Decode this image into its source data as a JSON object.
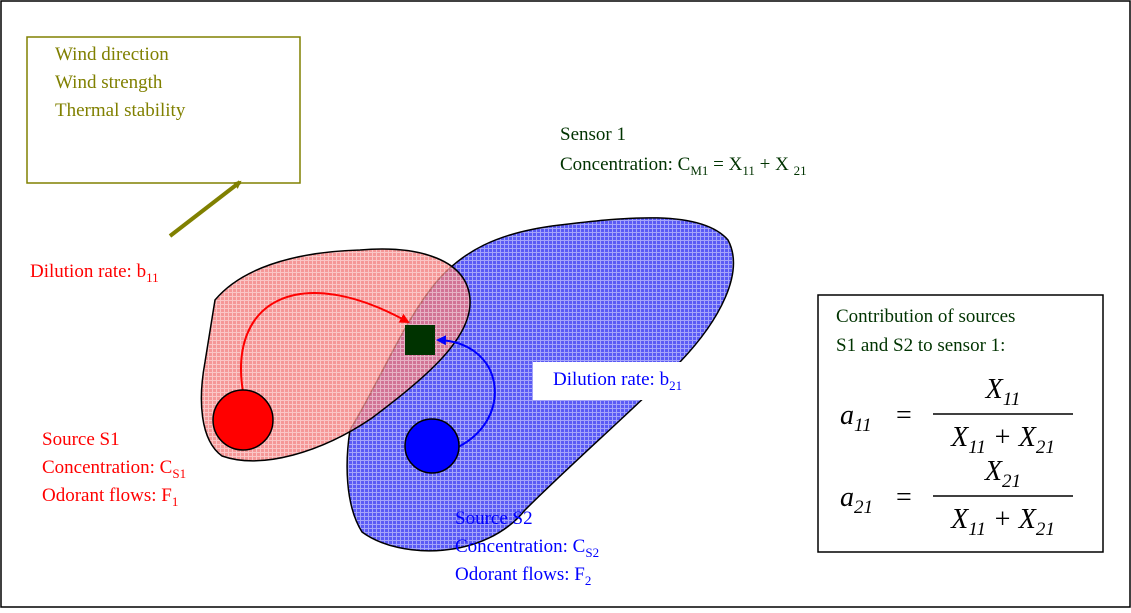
{
  "weather": {
    "lines": [
      "Wind direction",
      "Wind strength",
      "Thermal stability"
    ]
  },
  "sensor": {
    "lines": [
      [
        {
          "text": "Sensor 1"
        }
      ],
      [
        {
          "text": "Concentration: C"
        },
        {
          "sub": "M1"
        },
        {
          "text": " = X"
        },
        {
          "sub": "11"
        },
        {
          "text": " + X "
        },
        {
          "sub": "21"
        }
      ]
    ]
  },
  "dilution_1": [
    {
      "text": "Dilution rate: b"
    },
    {
      "sub": "11"
    }
  ],
  "dilution_2": [
    {
      "text": "Dilution rate: b"
    },
    {
      "sub": "21"
    }
  ],
  "source_1": {
    "lines": [
      [
        {
          "text": "Source S1"
        }
      ],
      [
        {
          "text": "Concentration: C"
        },
        {
          "sub": "S1"
        }
      ],
      [
        {
          "text": "Odorant flows: F"
        },
        {
          "sub": "1"
        }
      ]
    ]
  },
  "source_2": {
    "lines": [
      [
        {
          "text": "Source S2"
        }
      ],
      [
        {
          "text": "Concentration: C"
        },
        {
          "sub": "S2"
        }
      ],
      [
        {
          "text": "Odorant flows: F"
        },
        {
          "sub": "2"
        }
      ]
    ]
  },
  "contribution": {
    "lines": [
      "Contribution of sources",
      "S1 and S2 to sensor 1:"
    ],
    "formulas": [
      {
        "lhs": [
          {
            "text": "a"
          },
          {
            "sub": "11"
          }
        ],
        "eq": "=",
        "numerator": [
          {
            "text": "X"
          },
          {
            "sub": "11"
          }
        ],
        "denominator": [
          {
            "text": "X"
          },
          {
            "sub": "11"
          },
          {
            "text": " + X"
          },
          {
            "sub": "21"
          }
        ]
      },
      {
        "lhs": [
          {
            "text": "a"
          },
          {
            "sub": "21"
          }
        ],
        "eq": "=",
        "numerator": [
          {
            "text": "X"
          },
          {
            "sub": "21"
          }
        ],
        "denominator": [
          {
            "text": "X"
          },
          {
            "sub": "11"
          },
          {
            "text": " + X"
          },
          {
            "sub": "21"
          }
        ]
      }
    ]
  }
}
